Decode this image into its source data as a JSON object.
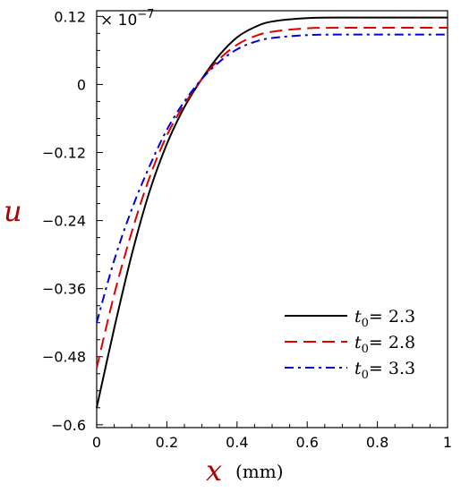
{
  "chart_data": {
    "type": "line",
    "xlabel": "x",
    "xunit": "(mm)",
    "ylabel": "u",
    "y_multiplier": {
      "base": "× 10",
      "exponent": "−7"
    },
    "xlim": [
      0,
      1
    ],
    "ylim": [
      -0.6,
      0.12
    ],
    "x_ticks": [
      "0",
      "0.2",
      "0.4",
      "0.6",
      "0.8",
      "1"
    ],
    "y_ticks": [
      "0.12",
      "0",
      "−0.12",
      "−0.24",
      "−0.36",
      "−0.48",
      "−0.6"
    ],
    "legend_position": "bottom-right",
    "grid": false,
    "series": [
      {
        "name": "t0 = 2.3",
        "legend_main": "t",
        "legend_sub": "0",
        "legend_value": "= 2.3",
        "color": "#000000",
        "dash": "solid",
        "x": [
          0,
          0.05,
          0.1,
          0.15,
          0.2,
          0.25,
          0.3,
          0.35,
          0.4,
          0.45,
          0.5,
          0.6,
          0.7,
          0.8,
          0.9,
          1.0
        ],
        "y": [
          -0.57,
          -0.43,
          -0.3,
          -0.19,
          -0.105,
          -0.04,
          0.01,
          0.052,
          0.083,
          0.101,
          0.111,
          0.117,
          0.118,
          0.118,
          0.118,
          0.118
        ]
      },
      {
        "name": "t0 = 2.8",
        "legend_main": "t",
        "legend_sub": "0",
        "legend_value": "= 2.8",
        "color": "#e00000",
        "dash": "long-dash",
        "x": [
          0,
          0.05,
          0.1,
          0.15,
          0.2,
          0.25,
          0.3,
          0.35,
          0.4,
          0.45,
          0.5,
          0.6,
          0.7,
          0.8,
          0.9,
          1.0
        ],
        "y": [
          -0.5,
          -0.37,
          -0.26,
          -0.165,
          -0.09,
          -0.035,
          0.01,
          0.045,
          0.07,
          0.085,
          0.093,
          0.099,
          0.1,
          0.1,
          0.1,
          0.1
        ]
      },
      {
        "name": "t0 = 3.3",
        "legend_main": "t",
        "legend_sub": "0",
        "legend_value": "= 3.3",
        "color": "#0000dd",
        "dash": "dash-dot",
        "x": [
          0,
          0.05,
          0.1,
          0.15,
          0.2,
          0.25,
          0.3,
          0.35,
          0.4,
          0.45,
          0.5,
          0.6,
          0.7,
          0.8,
          0.9,
          1.0
        ],
        "y": [
          -0.42,
          -0.31,
          -0.22,
          -0.145,
          -0.08,
          -0.03,
          0.01,
          0.04,
          0.062,
          0.075,
          0.082,
          0.087,
          0.088,
          0.088,
          0.088,
          0.088
        ]
      }
    ]
  }
}
